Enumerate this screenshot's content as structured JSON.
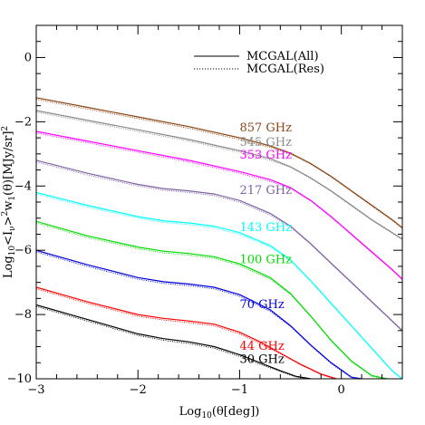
{
  "chart_data": {
    "type": "line",
    "xlabel": "Log10(θ[deg])",
    "ylabel": "Log10<Iν>²w1(θ)[MJy/sr]²",
    "xlim": [
      -3,
      0.6
    ],
    "ylim": [
      -10,
      1
    ],
    "x_ticks": [
      -3,
      -2,
      -1,
      0
    ],
    "x_tick_labels": [
      "−3",
      "−2",
      "−1",
      "0"
    ],
    "y_ticks": [
      -10,
      -8,
      -6,
      -4,
      -2,
      0
    ],
    "y_tick_labels": [
      "−10",
      "−8",
      "−6",
      "−4",
      "−2",
      "0"
    ],
    "legend": {
      "placement": "top-right",
      "entries": [
        {
          "label": "MCGAL(All)",
          "style": "solid"
        },
        {
          "label": "MCGAL(Res)",
          "style": "dotted"
        }
      ]
    },
    "series": [
      {
        "name": "857 GHz",
        "color": "#8b4513",
        "x": [
          -3,
          -2.5,
          -2,
          -1.5,
          -1,
          -0.7,
          -0.5,
          -0.3,
          -0.1,
          0.1,
          0.3,
          0.5,
          0.6
        ],
        "y": [
          -1.25,
          -1.55,
          -1.85,
          -2.15,
          -2.5,
          -2.75,
          -2.98,
          -3.3,
          -3.7,
          -4.15,
          -4.6,
          -5.05,
          -5.3
        ]
      },
      {
        "name": "545 GHz",
        "color": "#888888",
        "x": [
          -3,
          -2.5,
          -2,
          -1.5,
          -1,
          -0.7,
          -0.5,
          -0.3,
          -0.1,
          0.1,
          0.3,
          0.5,
          0.6
        ],
        "y": [
          -1.65,
          -1.95,
          -2.25,
          -2.55,
          -2.9,
          -3.15,
          -3.4,
          -3.75,
          -4.15,
          -4.6,
          -5.05,
          -5.45,
          -5.65
        ]
      },
      {
        "name": "353 GHz",
        "color": "#ff00ff",
        "x": [
          -3,
          -2.5,
          -2,
          -1.5,
          -1,
          -0.7,
          -0.5,
          -0.3,
          -0.1,
          0.1,
          0.3,
          0.5,
          0.6
        ],
        "y": [
          -2.3,
          -2.6,
          -2.9,
          -3.2,
          -3.55,
          -3.8,
          -4.05,
          -4.45,
          -4.95,
          -5.5,
          -6.05,
          -6.6,
          -6.9
        ]
      },
      {
        "name": "217 GHz",
        "color": "#7e60a3",
        "x": [
          -3,
          -2.5,
          -2,
          -1.75,
          -1.5,
          -1.25,
          -1,
          -0.7,
          -0.5,
          -0.3,
          -0.1,
          0.1,
          0.3,
          0.5,
          0.6
        ],
        "y": [
          -3.2,
          -3.6,
          -3.95,
          -4.08,
          -4.15,
          -4.25,
          -4.45,
          -4.85,
          -5.25,
          -5.8,
          -6.4,
          -7.0,
          -7.6,
          -8.2,
          -8.5
        ]
      },
      {
        "name": "143 GHz",
        "color": "#00ffff",
        "x": [
          -3,
          -2.5,
          -2,
          -1.75,
          -1.5,
          -1.25,
          -1,
          -0.7,
          -0.5,
          -0.3,
          -0.1,
          0.1,
          0.3,
          0.5,
          0.6
        ],
        "y": [
          -4.2,
          -4.6,
          -4.95,
          -5.08,
          -5.15,
          -5.25,
          -5.45,
          -5.85,
          -6.3,
          -6.95,
          -7.65,
          -8.35,
          -9.05,
          -9.75,
          -10.0
        ]
      },
      {
        "name": "100 GHz",
        "color": "#00dd00",
        "x": [
          -3,
          -2.5,
          -2,
          -1.75,
          -1.5,
          -1.25,
          -1,
          -0.7,
          -0.5,
          -0.3,
          -0.1,
          0.1,
          0.3,
          0.45
        ],
        "y": [
          -5.1,
          -5.55,
          -5.9,
          -6.03,
          -6.1,
          -6.2,
          -6.42,
          -6.85,
          -7.35,
          -8.05,
          -8.8,
          -9.45,
          -9.9,
          -10.0
        ]
      },
      {
        "name": "70 GHz",
        "color": "#0000dd",
        "x": [
          -3,
          -2.5,
          -2,
          -1.75,
          -1.5,
          -1.25,
          -1,
          -0.7,
          -0.5,
          -0.3,
          -0.1,
          0.1,
          0.2
        ],
        "y": [
          -6.0,
          -6.45,
          -6.85,
          -6.98,
          -7.05,
          -7.15,
          -7.38,
          -7.85,
          -8.35,
          -8.95,
          -9.5,
          -9.95,
          -10.0
        ]
      },
      {
        "name": "44 GHz",
        "color": "#ff0000",
        "x": [
          -3,
          -2.5,
          -2,
          -1.75,
          -1.5,
          -1.25,
          -1,
          -0.8,
          -0.6,
          -0.4,
          -0.2,
          -0.05
        ],
        "y": [
          -7.15,
          -7.6,
          -8.0,
          -8.12,
          -8.2,
          -8.3,
          -8.55,
          -8.85,
          -9.2,
          -9.55,
          -9.85,
          -10.0
        ]
      },
      {
        "name": "30 GHz",
        "color": "#000000",
        "x": [
          -3,
          -2.5,
          -2,
          -1.75,
          -1.5,
          -1.25,
          -1,
          -0.8,
          -0.6,
          -0.45,
          -0.3
        ],
        "y": [
          -7.7,
          -8.15,
          -8.6,
          -8.75,
          -8.85,
          -9.0,
          -9.25,
          -9.5,
          -9.75,
          -9.92,
          -10.0
        ]
      }
    ],
    "series_labels": [
      {
        "text": "857 GHz",
        "color": "#8b4513",
        "x": -1,
        "y": -2.3
      },
      {
        "text": "545 GHz",
        "color": "#888888",
        "x": -1,
        "y": -2.75
      },
      {
        "text": "353 GHz",
        "color": "#ff00ff",
        "x": -1,
        "y": -3.15
      },
      {
        "text": "217 GHz",
        "color": "#7e60a3",
        "x": -1,
        "y": -4.25
      },
      {
        "text": "143 GHz",
        "color": "#00ffff",
        "x": -1,
        "y": -5.4
      },
      {
        "text": "100 GHz",
        "color": "#00dd00",
        "x": -1,
        "y": -6.4
      },
      {
        "text": "70 GHz",
        "color": "#0000dd",
        "x": -1,
        "y": -7.8
      },
      {
        "text": "44 GHz",
        "color": "#ff0000",
        "x": -1,
        "y": -9.1
      },
      {
        "text": "30 GHz",
        "color": "#000000",
        "x": -1,
        "y": -9.5
      }
    ]
  }
}
